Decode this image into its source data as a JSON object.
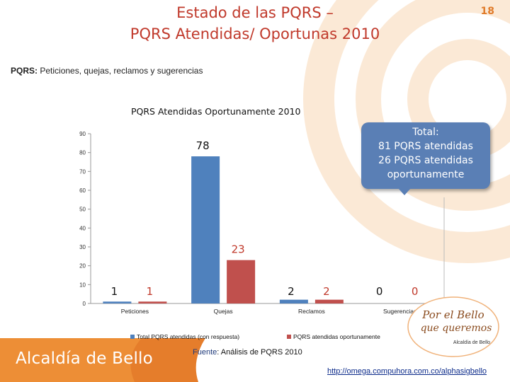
{
  "page": {
    "title_line1": "Estado de las PQRS –",
    "title_line2": "PQRS Atendidas/ Oportunas 2010",
    "slide_number": "18",
    "definition_label": "PQRS:",
    "definition_text": " Peticiones, quejas, reclamos y sugerencias",
    "source_label": "Fuente",
    "source_text": ": Análisis de PQRS 2010",
    "brand": "Alcaldía de Bello",
    "url": "http://omega.compuhora.com.co/alphasigbello"
  },
  "callout": {
    "line1_label": "Total",
    "line1_suffix": ":",
    "line2": "81 PQRS atendidas",
    "line3": "26 PQRS atendidas",
    "line4": "oportunamente"
  },
  "logo": {
    "line1": "Por el Bello",
    "line2": "que queremos",
    "line3": "Alcaldía de Bello"
  },
  "colors": {
    "series1": "#4f81bd",
    "series2": "#c0504d",
    "title": "#c0392b",
    "callout": "#5a7fb5"
  },
  "chart_data": {
    "type": "bar",
    "title": "PQRS Atendidas Oportunamente 2010",
    "categories": [
      "Peticiones",
      "Quejas",
      "Reclamos",
      "Sugerencias"
    ],
    "series": [
      {
        "name": "Total PQRS atendidas (con respuesta)",
        "values": [
          1,
          78,
          2,
          0
        ]
      },
      {
        "name": "PQRS atendidas oportunamente",
        "values": [
          1,
          23,
          2,
          0
        ]
      }
    ],
    "yticks": [
      0,
      10,
      20,
      30,
      40,
      50,
      60,
      70,
      80,
      90
    ],
    "ylim": [
      0,
      90
    ],
    "legend": "bottom"
  }
}
